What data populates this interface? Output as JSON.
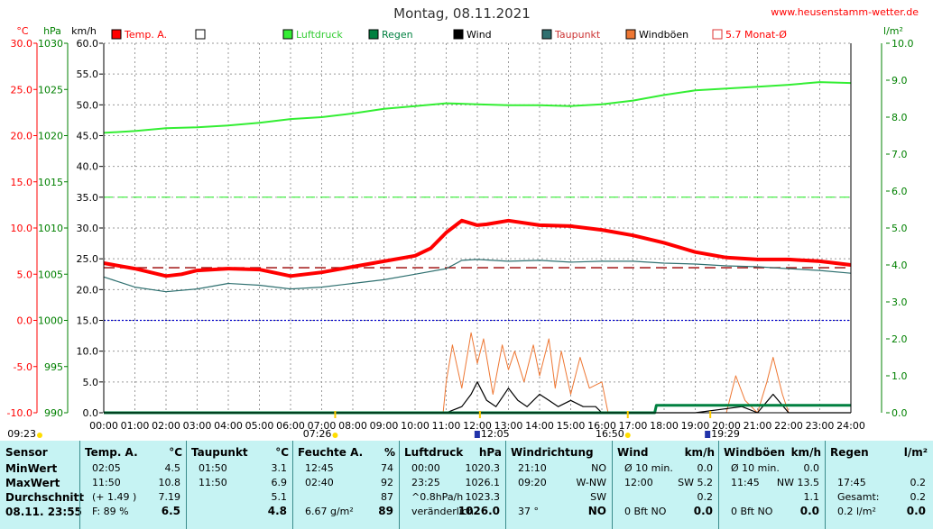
{
  "chart_data": {
    "type": "line",
    "title": "Montag, 08.11.2021",
    "source_label": "www.heusenstamm-wetter.de",
    "axes": {
      "temp": {
        "unit": "°C",
        "range": [
          -10.0,
          30.0
        ],
        "ticks": [
          "30.0",
          "25.0",
          "20.0",
          "15.0",
          "10.0",
          "5.0",
          "0.0",
          "-5.0",
          "-10.0"
        ],
        "color": "#ff0000"
      },
      "pressure": {
        "unit": "hPa",
        "range": [
          990,
          1030
        ],
        "ticks": [
          "1030",
          "1025",
          "1020",
          "1015",
          "1010",
          "1005",
          "1000",
          "995",
          "990"
        ],
        "color": "#008000"
      },
      "wind": {
        "unit": "km/h",
        "range": [
          0.0,
          60.0
        ],
        "ticks": [
          "60.0",
          "55.0",
          "50.0",
          "45.0",
          "40.0",
          "35.0",
          "30.0",
          "25.0",
          "20.0",
          "15.0",
          "10.0",
          "5.0",
          "0.0"
        ],
        "color": "#000000"
      },
      "rain": {
        "unit": "l/m²",
        "range": [
          0.0,
          10.0
        ],
        "ticks": [
          "10.0",
          "9.0",
          "8.0",
          "7.0",
          "6.0",
          "5.0",
          "4.0",
          "3.0",
          "2.0",
          "1.0",
          "0.0"
        ],
        "color": "#008000"
      }
    },
    "x_ticks": [
      "00:00",
      "01:00",
      "02:00",
      "03:00",
      "04:00",
      "05:00",
      "06:00",
      "07:00",
      "08:00",
      "09:00",
      "10:00",
      "11:00",
      "12:00",
      "13:00",
      "14:00",
      "15:00",
      "16:00",
      "17:00",
      "18:00",
      "19:00",
      "20:00",
      "21:00",
      "22:00",
      "23:00",
      "24:00"
    ],
    "grid": true,
    "legend": [
      {
        "name": "Temp. A.",
        "color": "#ff0000",
        "style": "filled"
      },
      {
        "name": "",
        "color": "#ffffff",
        "style": "empty"
      },
      {
        "name": "Luftdruck",
        "color": "#33ee33",
        "style": "filled"
      },
      {
        "name": "Regen",
        "color": "#008040",
        "style": "filled"
      },
      {
        "name": "Wind",
        "color": "#000000",
        "style": "filled"
      },
      {
        "name": "Taupunkt",
        "color": "#2f7070",
        "style": "filled"
      },
      {
        "name": "Windböen",
        "color": "#ee7733",
        "style": "filled"
      },
      {
        "name": "5.7 Monat-Ø",
        "color": "#dd3333",
        "style": "outline"
      }
    ],
    "reference_lines": [
      {
        "axis": "temp",
        "value": 5.7,
        "color": "#990000"
      },
      {
        "axis": "temp",
        "value": 0.0,
        "color": "#0000cc"
      },
      {
        "axis": "wind",
        "value": 35.0,
        "color": "#33ee33"
      }
    ],
    "sun_markers": [
      {
        "time": "09:23",
        "side": "left"
      },
      {
        "time": "07:26",
        "side": "left"
      },
      {
        "time": "12:05",
        "side": "right"
      },
      {
        "time": "16:50",
        "side": "left"
      },
      {
        "time": "19:29",
        "side": "right"
      }
    ],
    "series": [
      {
        "name": "Temp. A.",
        "axis": "temp",
        "color": "#ff0000",
        "x": [
          0,
          1,
          1.5,
          2,
          2.5,
          3,
          4,
          5,
          6,
          7,
          8,
          9,
          10,
          10.5,
          11,
          11.5,
          11.7,
          12,
          12.3,
          13,
          14,
          15,
          16,
          17,
          18,
          19,
          20,
          21,
          22,
          23,
          24
        ],
        "y": [
          6.2,
          5.6,
          5.2,
          4.8,
          5.0,
          5.4,
          5.6,
          5.5,
          4.8,
          5.2,
          5.8,
          6.4,
          7.0,
          7.8,
          9.5,
          10.8,
          10.6,
          10.3,
          10.4,
          10.8,
          10.3,
          10.2,
          9.8,
          9.2,
          8.4,
          7.4,
          6.8,
          6.6,
          6.6,
          6.4,
          6.0
        ]
      },
      {
        "name": "Luftdruck",
        "axis": "pressure",
        "color": "#33ee33",
        "x": [
          0,
          1,
          2,
          3,
          4,
          5,
          6,
          7,
          8,
          9,
          10,
          11,
          12,
          13,
          14,
          15,
          16,
          17,
          18,
          19,
          20,
          21,
          22,
          23,
          24
        ],
        "y": [
          1020.3,
          1020.5,
          1020.8,
          1020.9,
          1021.1,
          1021.4,
          1021.8,
          1022.0,
          1022.4,
          1022.9,
          1023.2,
          1023.5,
          1023.4,
          1023.3,
          1023.3,
          1023.2,
          1023.4,
          1023.8,
          1024.4,
          1024.9,
          1025.1,
          1025.3,
          1025.5,
          1025.8,
          1025.7
        ]
      },
      {
        "name": "Taupunkt",
        "axis": "temp",
        "color": "#2f7070",
        "x": [
          0,
          1,
          2,
          3,
          4,
          5,
          6,
          7,
          8,
          9,
          10,
          11,
          11.5,
          12,
          13,
          14,
          15,
          16,
          17,
          18,
          19,
          20,
          21,
          22,
          23,
          24
        ],
        "y": [
          4.7,
          3.6,
          3.1,
          3.4,
          4.0,
          3.8,
          3.4,
          3.6,
          4.0,
          4.4,
          5.0,
          5.6,
          6.5,
          6.6,
          6.4,
          6.5,
          6.3,
          6.4,
          6.4,
          6.2,
          6.1,
          5.9,
          5.8,
          5.6,
          5.4,
          5.1
        ]
      },
      {
        "name": "Windböen",
        "axis": "wind",
        "color": "#ee7733",
        "x": [
          0,
          10.9,
          11,
          11.2,
          11.5,
          11.8,
          12,
          12.2,
          12.5,
          12.8,
          13,
          13.2,
          13.5,
          13.8,
          14,
          14.3,
          14.5,
          14.7,
          15,
          15.3,
          15.6,
          16,
          16.2,
          19,
          20,
          20.3,
          20.6,
          21,
          21.3,
          21.5,
          21.8,
          22,
          24
        ],
        "y": [
          0,
          0,
          5,
          11,
          4,
          13,
          8,
          12,
          3,
          11,
          7,
          10,
          5,
          11,
          6,
          12,
          4,
          10,
          3,
          9,
          4,
          5,
          0,
          0,
          0,
          6,
          2,
          0,
          5,
          9,
          3,
          0,
          0
        ]
      },
      {
        "name": "Wind",
        "axis": "wind",
        "color": "#000000",
        "x": [
          0,
          11,
          11.5,
          11.8,
          12,
          12.3,
          12.6,
          13,
          13.3,
          13.6,
          14,
          14.3,
          14.6,
          15,
          15.4,
          15.8,
          16,
          19,
          20.5,
          21,
          21.5,
          22,
          24
        ],
        "y": [
          0,
          0,
          1,
          3,
          5,
          2,
          1,
          4,
          2,
          1,
          3,
          2,
          1,
          2,
          1,
          1,
          0,
          0,
          1,
          0,
          3,
          0,
          0
        ]
      },
      {
        "name": "Regen",
        "axis": "rain",
        "color": "#008040",
        "x": [
          0,
          17.7,
          17.75,
          24
        ],
        "y": [
          0,
          0,
          0.2,
          0.2
        ]
      }
    ]
  },
  "table": {
    "row_labels": [
      "Sensor",
      "MinWert",
      "MaxWert",
      "Durchschnitt",
      "08.11. 23:55"
    ],
    "sections": [
      {
        "title": "Temp. A.",
        "unit": "°C",
        "rows": [
          [
            "02:05",
            "4.5"
          ],
          [
            "11:50",
            "10.8"
          ],
          [
            "(+ 1.49 )",
            "7.19"
          ],
          [
            "F: 89 %",
            "6.5"
          ]
        ]
      },
      {
        "title": "Taupunkt",
        "unit": "°C",
        "rows": [
          [
            "01:50",
            "3.1"
          ],
          [
            "11:50",
            "6.9"
          ],
          [
            "",
            "5.1"
          ],
          [
            "",
            "4.8"
          ]
        ]
      },
      {
        "title": "Feuchte A.",
        "unit": "%",
        "rows": [
          [
            "12:45",
            "74"
          ],
          [
            "02:40",
            "92"
          ],
          [
            "",
            "87"
          ],
          [
            "6.67 g/m²",
            "89"
          ]
        ]
      },
      {
        "title": "Luftdruck",
        "unit": "hPa",
        "rows": [
          [
            "00:00",
            "1020.3"
          ],
          [
            "23:25",
            "1026.1"
          ],
          [
            "^0.8hPa/h",
            "1023.3"
          ],
          [
            "veränderlich",
            "1026.0"
          ]
        ]
      },
      {
        "title": "Windrichtung",
        "unit": "",
        "rows": [
          [
            "21:10",
            "NO"
          ],
          [
            "09:20",
            "W-NW"
          ],
          [
            "",
            "SW"
          ],
          [
            "37 °",
            "NO"
          ]
        ]
      },
      {
        "title": "Wind",
        "unit": "km/h",
        "rows": [
          [
            "Ø 10 min.",
            "0.0"
          ],
          [
            "12:00",
            "SW 5.2"
          ],
          [
            "",
            "0.2"
          ],
          [
            "0 Bft NO",
            "0.0"
          ]
        ]
      },
      {
        "title": "Windböen",
        "unit": "km/h",
        "rows": [
          [
            "Ø 10 min.",
            "0.0"
          ],
          [
            "11:45",
            "NW 13.5"
          ],
          [
            "",
            "1.1"
          ],
          [
            "0 Bft NO",
            "0.0"
          ]
        ]
      },
      {
        "title": "Regen",
        "unit": "l/m²",
        "rows": [
          [
            "",
            ""
          ],
          [
            "17:45",
            "0.2"
          ],
          [
            "Gesamt:",
            "0.2"
          ],
          [
            "0.2 l/m²",
            "0.0"
          ]
        ]
      }
    ]
  }
}
